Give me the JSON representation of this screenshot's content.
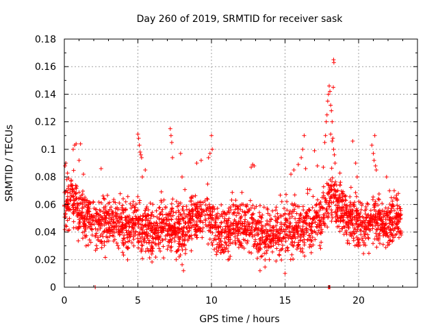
{
  "chart_data": {
    "type": "scatter",
    "title": "Day 260 of 2019, SRMTID for receiver sask",
    "xlabel": "GPS time / hours",
    "ylabel": "SRMTID / TECUs",
    "xlim": [
      0,
      24
    ],
    "ylim": [
      0,
      0.18
    ],
    "x_ticks": [
      "0",
      "5",
      "10",
      "15",
      "20"
    ],
    "y_ticks": [
      "0",
      "0.02",
      "0.04",
      "0.06",
      "0.08",
      "0.1",
      "0.12",
      "0.14",
      "0.16",
      "0.18"
    ],
    "grid": true,
    "marker": "+",
    "series": [
      {
        "name": "SRMTID",
        "color": "#ff0000",
        "baseline": [
          [
            0.0,
            0.06
          ],
          [
            0.5,
            0.065
          ],
          [
            1.0,
            0.055
          ],
          [
            1.5,
            0.05
          ],
          [
            2.0,
            0.048
          ],
          [
            2.5,
            0.046
          ],
          [
            3.0,
            0.047
          ],
          [
            3.5,
            0.046
          ],
          [
            4.0,
            0.044
          ],
          [
            4.5,
            0.043
          ],
          [
            5.0,
            0.047
          ],
          [
            5.5,
            0.043
          ],
          [
            6.0,
            0.04
          ],
          [
            6.5,
            0.042
          ],
          [
            7.0,
            0.046
          ],
          [
            7.5,
            0.043
          ],
          [
            8.0,
            0.04
          ],
          [
            8.5,
            0.05
          ],
          [
            9.0,
            0.052
          ],
          [
            9.5,
            0.055
          ],
          [
            10.0,
            0.048
          ],
          [
            10.5,
            0.036
          ],
          [
            11.0,
            0.04
          ],
          [
            11.5,
            0.044
          ],
          [
            12.0,
            0.047
          ],
          [
            12.5,
            0.044
          ],
          [
            13.0,
            0.042
          ],
          [
            13.5,
            0.039
          ],
          [
            14.0,
            0.038
          ],
          [
            14.5,
            0.04
          ],
          [
            15.0,
            0.046
          ],
          [
            15.5,
            0.042
          ],
          [
            16.0,
            0.04
          ],
          [
            16.5,
            0.045
          ],
          [
            17.0,
            0.047
          ],
          [
            17.5,
            0.05
          ],
          [
            18.0,
            0.068
          ],
          [
            18.5,
            0.062
          ],
          [
            19.0,
            0.054
          ],
          [
            19.5,
            0.05
          ],
          [
            20.0,
            0.046
          ],
          [
            20.5,
            0.045
          ],
          [
            21.0,
            0.05
          ],
          [
            21.5,
            0.047
          ],
          [
            22.0,
            0.046
          ],
          [
            22.5,
            0.05
          ],
          [
            23.0,
            0.048
          ]
        ],
        "spread": 0.018,
        "density_per_hour": 110,
        "x_end": 22.9,
        "outliers": [
          [
            0.05,
            0.088
          ],
          [
            0.1,
            0.09
          ],
          [
            0.6,
            0.1
          ],
          [
            0.7,
            0.103
          ],
          [
            0.8,
            0.104
          ],
          [
            1.0,
            0.092
          ],
          [
            1.1,
            0.104
          ],
          [
            1.3,
            0.082
          ],
          [
            2.1,
            0.0
          ],
          [
            2.5,
            0.086
          ],
          [
            5.0,
            0.111
          ],
          [
            5.05,
            0.108
          ],
          [
            5.1,
            0.103
          ],
          [
            5.15,
            0.098
          ],
          [
            5.2,
            0.096
          ],
          [
            5.25,
            0.094
          ],
          [
            5.3,
            0.08
          ],
          [
            5.5,
            0.085
          ],
          [
            7.2,
            0.115
          ],
          [
            7.25,
            0.11
          ],
          [
            7.3,
            0.105
          ],
          [
            7.35,
            0.094
          ],
          [
            7.6,
            0.02
          ],
          [
            7.9,
            0.097
          ],
          [
            8.0,
            0.08
          ],
          [
            8.1,
            0.012
          ],
          [
            9.0,
            0.09
          ],
          [
            9.3,
            0.092
          ],
          [
            9.8,
            0.094
          ],
          [
            9.9,
            0.097
          ],
          [
            10.0,
            0.11
          ],
          [
            10.05,
            0.1
          ],
          [
            12.7,
            0.087
          ],
          [
            12.8,
            0.089
          ],
          [
            12.9,
            0.088
          ],
          [
            13.3,
            0.012
          ],
          [
            15.0,
            0.01
          ],
          [
            15.4,
            0.082
          ],
          [
            15.6,
            0.085
          ],
          [
            15.9,
            0.089
          ],
          [
            16.1,
            0.094
          ],
          [
            16.2,
            0.1
          ],
          [
            16.3,
            0.11
          ],
          [
            16.4,
            0.086
          ],
          [
            17.0,
            0.099
          ],
          [
            17.2,
            0.088
          ],
          [
            17.6,
            0.087
          ],
          [
            17.7,
            0.105
          ],
          [
            17.75,
            0.11
          ],
          [
            17.8,
            0.12
          ],
          [
            17.85,
            0.125
          ],
          [
            17.9,
            0.135
          ],
          [
            17.95,
            0.14
          ],
          [
            18.0,
            0.146
          ],
          [
            18.05,
            0.142
          ],
          [
            18.1,
            0.132
          ],
          [
            18.15,
            0.128
          ],
          [
            18.2,
            0.12
          ],
          [
            18.25,
            0.108
          ],
          [
            18.3,
            0.1
          ],
          [
            18.35,
            0.096
          ],
          [
            18.4,
            0.09
          ],
          [
            18.3,
            0.165
          ],
          [
            18.32,
            0.163
          ],
          [
            18.28,
            0.145
          ],
          [
            18.1,
            0.111
          ],
          [
            18.2,
            0.106
          ],
          [
            17.95,
            0.0
          ],
          [
            18.0,
            0.0
          ],
          [
            18.05,
            0.0
          ],
          [
            19.6,
            0.106
          ],
          [
            19.8,
            0.09
          ],
          [
            19.9,
            0.08
          ],
          [
            20.9,
            0.103
          ],
          [
            21.0,
            0.097
          ],
          [
            21.05,
            0.092
          ],
          [
            21.1,
            0.11
          ],
          [
            21.15,
            0.088
          ],
          [
            21.2,
            0.085
          ],
          [
            21.9,
            0.08
          ],
          [
            22.1,
            0.07
          ],
          [
            22.7,
            0.068
          ]
        ]
      }
    ]
  }
}
